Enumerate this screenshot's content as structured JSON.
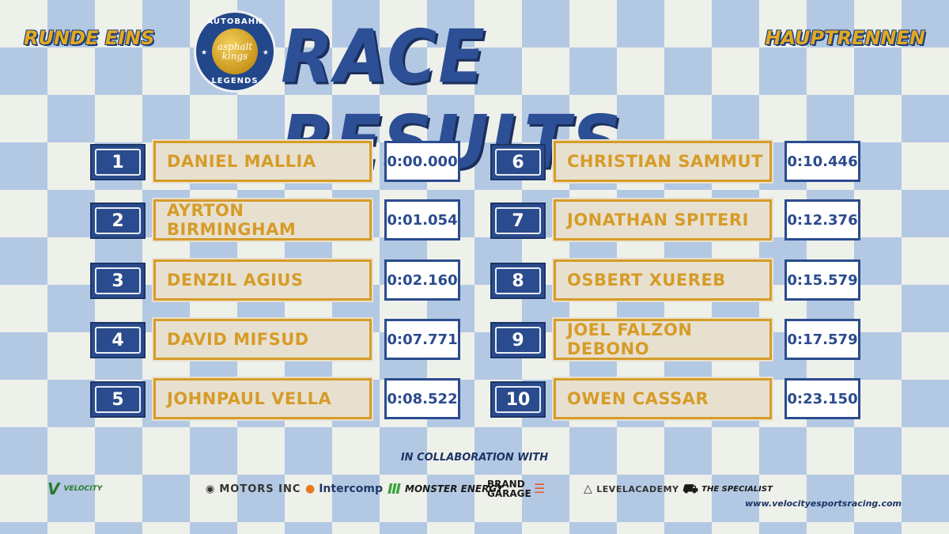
{
  "header": {
    "round_label": "RUNDE EINS",
    "heat_label": "HAUPTRENNEN",
    "title": "RACE RESULTS",
    "logo": {
      "top_text": "AUTOBAHN",
      "center_text": "asphalt kings",
      "bottom_text": "LEGENDS"
    }
  },
  "results": [
    {
      "pos": "1",
      "name": "DANIEL MALLIA",
      "time": "0:00.000"
    },
    {
      "pos": "2",
      "name": "AYRTON BIRMINGHAM",
      "time": "0:01.054"
    },
    {
      "pos": "3",
      "name": "DENZIL AGIUS",
      "time": "0:02.160"
    },
    {
      "pos": "4",
      "name": "DAVID MIFSUD",
      "time": "0:07.771"
    },
    {
      "pos": "5",
      "name": "JOHNPAUL VELLA",
      "time": "0:08.522"
    },
    {
      "pos": "6",
      "name": "CHRISTIAN SAMMUT",
      "time": "0:10.446"
    },
    {
      "pos": "7",
      "name": "JONATHAN SPITERI",
      "time": "0:12.376"
    },
    {
      "pos": "8",
      "name": "OSBERT XUEREB",
      "time": "0:15.579"
    },
    {
      "pos": "9",
      "name": "JOEL FALZON DEBONO",
      "time": "0:17.579"
    },
    {
      "pos": "10",
      "name": "OWEN CASSAR",
      "time": "0:23.150"
    }
  ],
  "footer": {
    "collab_label": "IN COLLABORATION WITH",
    "sponsors": {
      "velocity": "VELOCITY",
      "motors": "MOTORS INC",
      "intercomp": "Intercomp",
      "monster": "MONSTER ENERGY",
      "brand": "BRAND GARAGE",
      "level": "LEVELACADEMY",
      "specialist": "THE SPECIALIST"
    },
    "website": "www.velocityesportsracing.com"
  },
  "colors": {
    "accent_gold": "#d69c28",
    "accent_blue": "#2a4b8d",
    "pattern_blue": "#b3c8e3"
  }
}
